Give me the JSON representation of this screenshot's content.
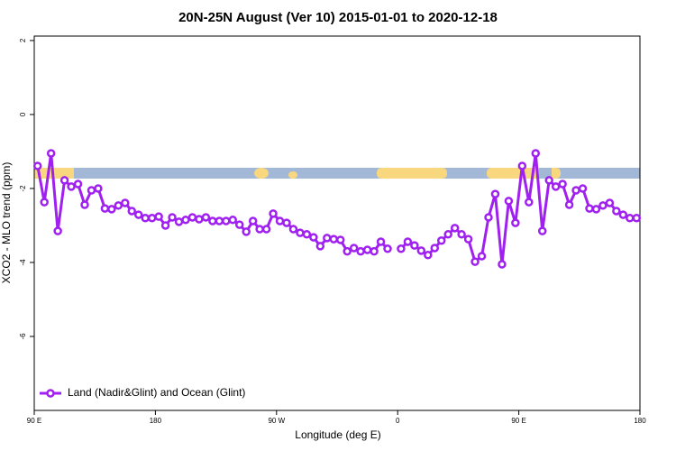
{
  "chart_data": {
    "type": "line",
    "title": "20N-25N August (Ver 10)   2015-01-01 to 2020-12-18",
    "x_label": "Longitude (deg E)",
    "y_label": "XCO2 - MLO trend (ppm)",
    "xlim": [
      90,
      540
    ],
    "ylim": [
      -8,
      2.12
    ],
    "xticks": [
      {
        "value": 90,
        "label": "90 E"
      },
      180,
      {
        "value": 270,
        "label": "90 W"
      },
      {
        "value": 360,
        "label": "0"
      },
      {
        "value": 450,
        "label": "90 E"
      },
      {
        "value": 540,
        "label": "180"
      }
    ],
    "yticks": [
      2,
      0,
      -2,
      -4,
      -6
    ],
    "legend": "bottomleft",
    "x": [
      92.5,
      97.5,
      102.5,
      107.5,
      112.5,
      117.5,
      122.5,
      127.5,
      132.5,
      137.5,
      142.5,
      147.5,
      152.5,
      157.5,
      162.5,
      167.5,
      172.5,
      177.5,
      182.5,
      187.5,
      192.5,
      197.5,
      202.5,
      207.5,
      212.5,
      217.5,
      222.5,
      227.5,
      232.5,
      237.5,
      242.5,
      247.5,
      252.5,
      257.5,
      262.5,
      267.5,
      272.5,
      277.5,
      282.5,
      287.5,
      292.5,
      297.5,
      302.5,
      307.5,
      312.5,
      317.5,
      322.5,
      327.5,
      332.5,
      337.5,
      342.5,
      347.5,
      352.5,
      357.5,
      362.5,
      367.5,
      372.5,
      377.5,
      382.5,
      387.5,
      392.5,
      397.5,
      402.5,
      407.5,
      412.5,
      417.5,
      422.5,
      427.5,
      432.5,
      437.5,
      442.5,
      447.5,
      452.5,
      457.5,
      462.5,
      467.5,
      472.5,
      477.5,
      482.5,
      487.5,
      492.5,
      497.5,
      502.5,
      507.5,
      512.5,
      517.5,
      522.5,
      527.5,
      532.5,
      537.5
    ],
    "series": [
      {
        "name": "Land (Nadir&Glint) and Ocean (Glint)",
        "color": "#a020f0",
        "values": [
          -1.39,
          -2.37,
          -1.05,
          -3.15,
          -1.78,
          -1.95,
          -1.88,
          -2.44,
          -2.05,
          -2.0,
          -2.54,
          -2.56,
          -2.46,
          -2.39,
          -2.61,
          -2.71,
          -2.8,
          -2.8,
          -2.76,
          -3.0,
          -2.78,
          -2.9,
          -2.85,
          -2.78,
          -2.83,
          -2.78,
          -2.88,
          -2.88,
          -2.88,
          -2.85,
          -2.98,
          -3.17,
          -2.88,
          -3.1,
          -3.1,
          -2.68,
          -2.88,
          -2.93,
          -3.1,
          -3.2,
          -3.24,
          -3.32,
          -3.56,
          -3.34,
          -3.37,
          -3.39,
          -3.7,
          -3.61,
          -3.7,
          -3.66,
          -3.7,
          -3.44,
          -3.63,
          null,
          -3.63,
          -3.44,
          -3.54,
          -3.68,
          -3.8,
          -3.61,
          -3.41,
          -3.24,
          -3.07,
          -3.24,
          -3.37,
          -3.98,
          -3.83,
          -2.78,
          -2.15,
          -4.05,
          -2.34,
          -2.93,
          -1.39,
          -2.37,
          -1.05,
          -3.15,
          -1.78,
          -1.95,
          -1.88,
          -2.44,
          -2.05,
          -2.0,
          -2.54,
          -2.56,
          -2.46,
          -2.39,
          -2.61,
          -2.71,
          -2.8,
          -2.8
        ]
      }
    ]
  }
}
